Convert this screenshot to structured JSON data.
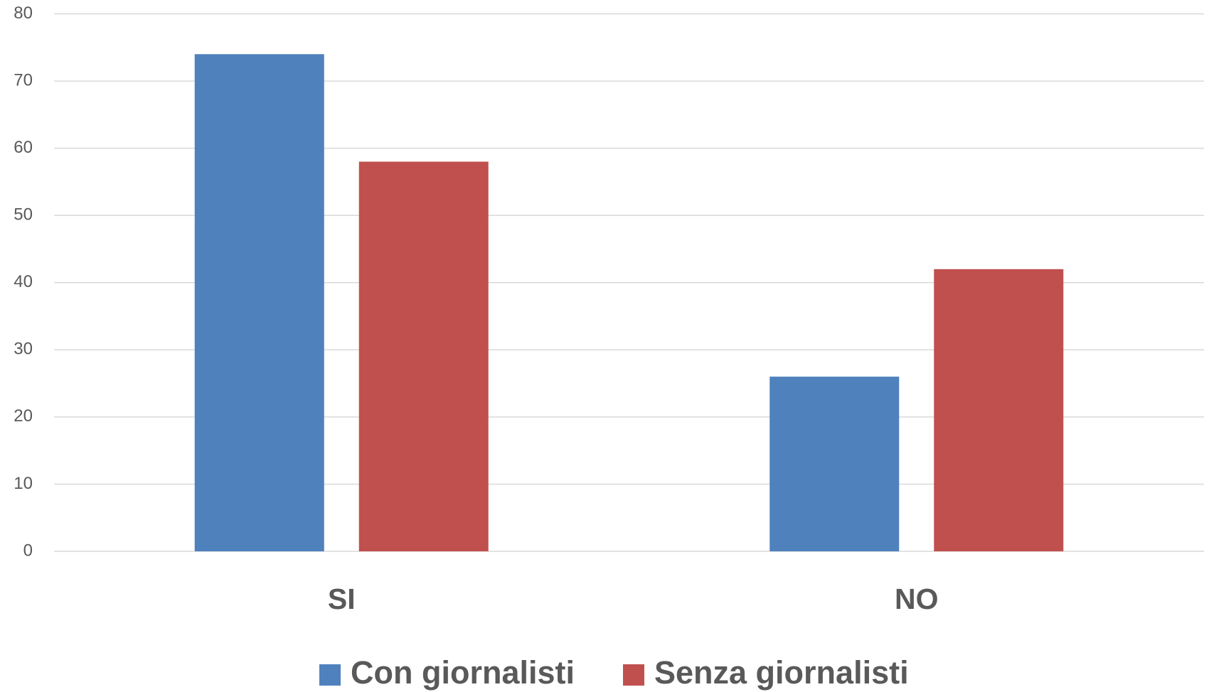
{
  "chart_data": {
    "type": "bar",
    "categories": [
      "SI",
      "NO"
    ],
    "series": [
      {
        "name": "Con giornalisti",
        "color": "#4f81bd",
        "values": [
          74,
          26
        ]
      },
      {
        "name": "Senza giornalisti",
        "color": "#c0504d",
        "values": [
          58,
          42
        ]
      }
    ],
    "ylim": [
      0,
      80
    ],
    "yticks": [
      0,
      10,
      20,
      30,
      40,
      50,
      60,
      70,
      80
    ],
    "grid": true
  }
}
